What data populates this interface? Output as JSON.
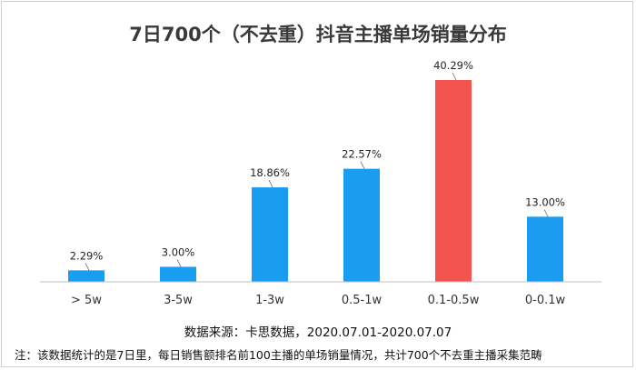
{
  "chart_data": {
    "type": "bar",
    "title": "7日700个（不去重）抖音主播单场销量分布",
    "categories": [
      "> 5w",
      "3-5w",
      "1-3w",
      "0.5-1w",
      "0.1-0.5w",
      "0-0.1w"
    ],
    "values": [
      2.29,
      3.0,
      18.86,
      22.57,
      40.29,
      13.0
    ],
    "labels": [
      "2.29%",
      "3.00%",
      "18.86%",
      "22.57%",
      "40.29%",
      "13.00%"
    ],
    "unit": "%",
    "ylim": [
      0,
      40.29
    ],
    "highlight_index": 4,
    "colors": {
      "bar": "#1a9cf0",
      "highlight": "#f4544e"
    },
    "grid": false,
    "legend": "none"
  },
  "source": "数据来源：卡思数据，2020.07.01-2020.07.07",
  "note": "注：该数据统计的是7日里，每日销售额排名前100主播的单场销量情况，共计700个不去重主播采集范畴"
}
